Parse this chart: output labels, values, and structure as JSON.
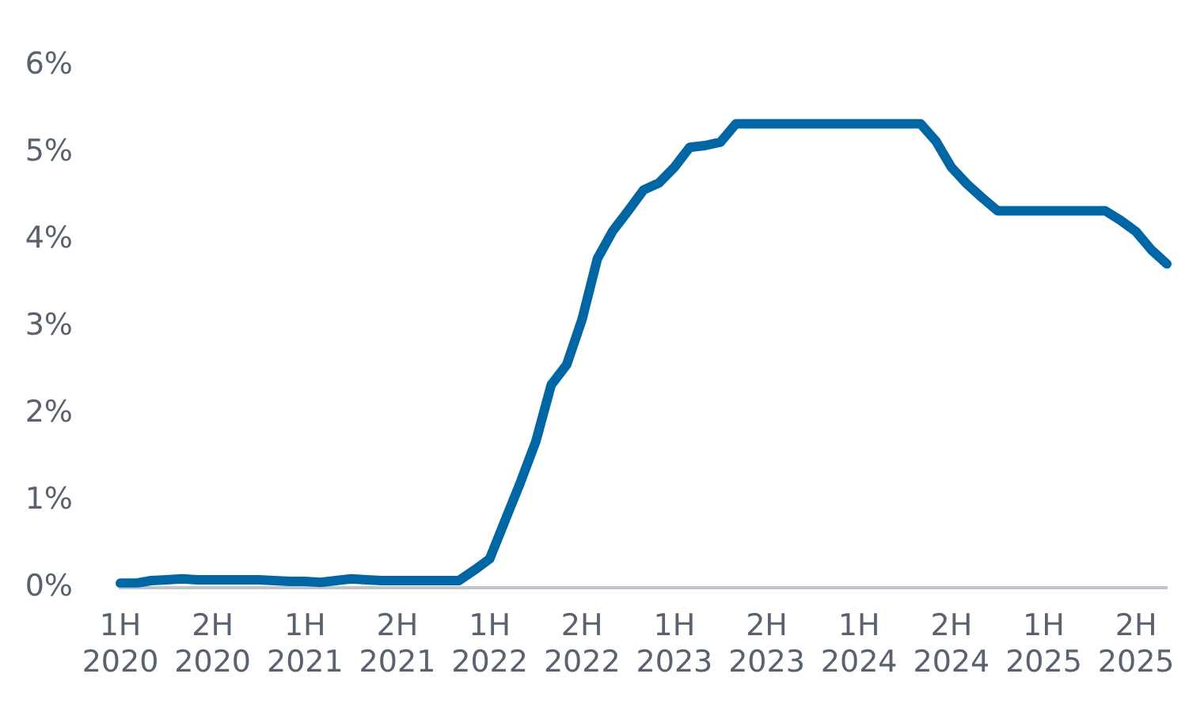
{
  "chart_data": {
    "type": "line",
    "categories": [
      "1H 2020",
      null,
      null,
      null,
      null,
      null,
      "2H 2020",
      null,
      null,
      null,
      null,
      null,
      "1H 2021",
      null,
      null,
      null,
      null,
      null,
      "2H 2021",
      null,
      null,
      null,
      null,
      null,
      "1H 2022",
      null,
      null,
      null,
      null,
      null,
      "2H 2022",
      null,
      null,
      null,
      null,
      null,
      "1H 2023",
      null,
      null,
      null,
      null,
      null,
      "2H 2023",
      null,
      null,
      null,
      null,
      null,
      "1H 2024",
      null,
      null,
      null,
      null,
      null,
      "2H 2024",
      null,
      null,
      null,
      null,
      null,
      "1H 2025",
      null,
      null,
      null,
      null,
      null,
      "2H 2025",
      null,
      null
    ],
    "series": [
      {
        "color": "#0066a4",
        "values": [
          0.05,
          0.05,
          0.08,
          0.09,
          0.1,
          0.09,
          0.09,
          0.09,
          0.09,
          0.09,
          0.08,
          0.07,
          0.07,
          0.06,
          0.08,
          0.1,
          0.09,
          0.08,
          0.08,
          0.08,
          0.08,
          0.08,
          0.08,
          0.2,
          0.33,
          0.77,
          1.21,
          1.68,
          2.33,
          2.56,
          3.08,
          3.78,
          4.1,
          4.33,
          4.57,
          4.65,
          4.83,
          5.06,
          5.08,
          5.12,
          5.33,
          5.33,
          5.33,
          5.33,
          5.33,
          5.33,
          5.33,
          5.33,
          5.33,
          5.33,
          5.33,
          5.33,
          5.33,
          5.13,
          4.83,
          4.64,
          4.48,
          4.33,
          4.33,
          4.33,
          4.33,
          4.33,
          4.33,
          4.33,
          4.33,
          4.22,
          4.09,
          3.88,
          3.72
        ]
      }
    ],
    "ylim": [
      0,
      6
    ],
    "yticks": [
      {
        "value": 0,
        "label": "0%"
      },
      {
        "value": 1,
        "label": "1%"
      },
      {
        "value": 2,
        "label": "2%"
      },
      {
        "value": 3,
        "label": "3%"
      },
      {
        "value": 4,
        "label": "4%"
      },
      {
        "value": 5,
        "label": "5%"
      },
      {
        "value": 6,
        "label": "6%"
      }
    ],
    "grid": false,
    "legend": false,
    "marker": "none",
    "line_style": "solid"
  }
}
